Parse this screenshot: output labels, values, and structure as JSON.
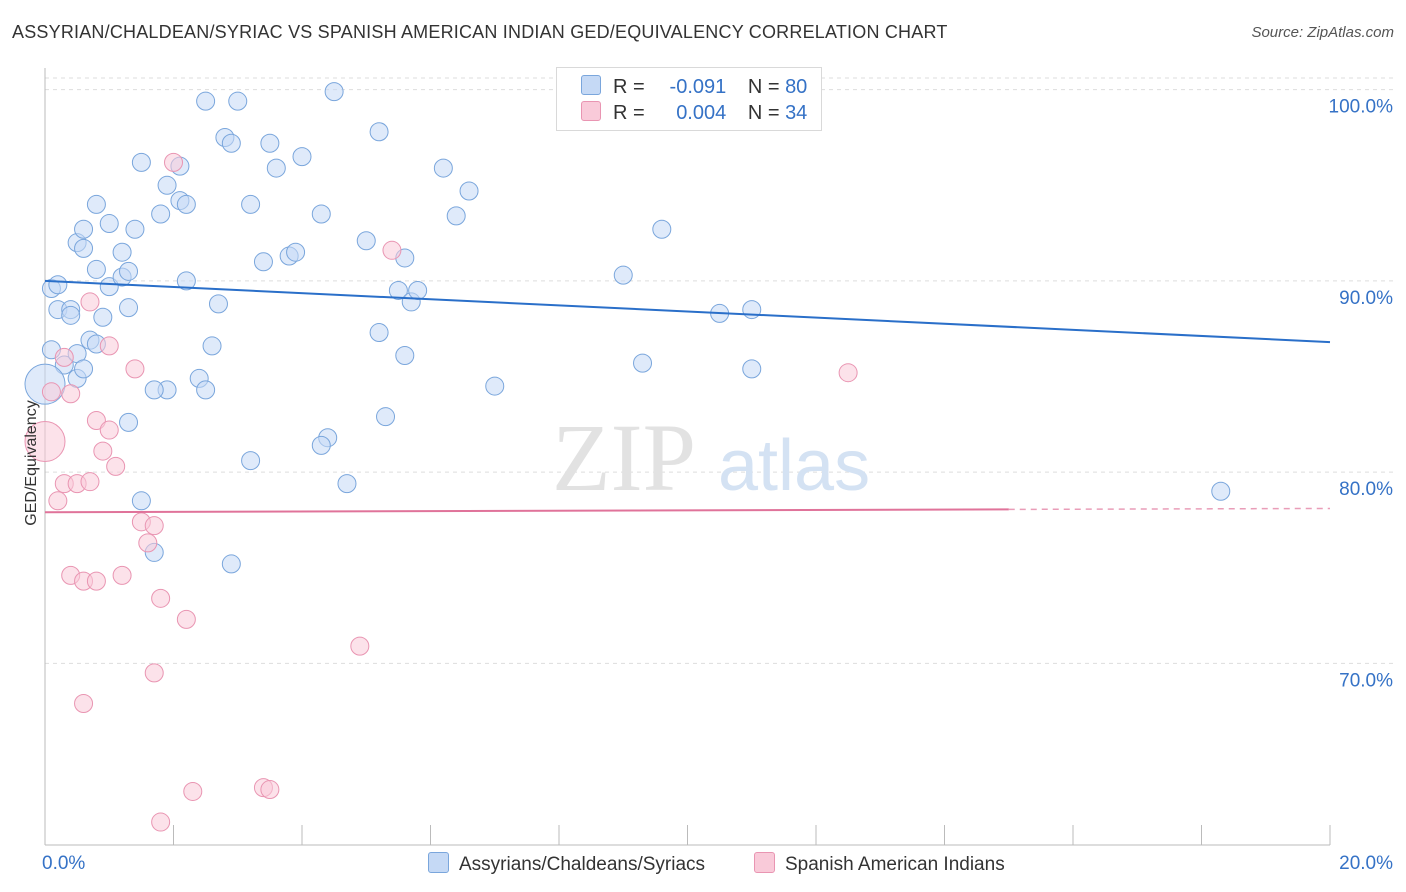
{
  "title": "ASSYRIAN/CHALDEAN/SYRIAC VS SPANISH AMERICAN INDIAN GED/EQUIVALENCY CORRELATION CHART",
  "source": "Source: ZipAtlas.com",
  "watermark": {
    "zip": "ZIP",
    "atlas": "atlas"
  },
  "legend": {
    "r_label": "R =",
    "n_label": "N =",
    "series1": {
      "r": "-0.091",
      "n": "80"
    },
    "series2": {
      "r": "0.004",
      "n": "34"
    }
  },
  "colors": {
    "blue_fill": "#c5d9f5",
    "blue_stroke": "#7aa6dc",
    "blue_line": "#2a6fc9",
    "pink_fill": "#f9cad9",
    "pink_stroke": "#e995b2",
    "pink_line": "#e0739a",
    "axis_text": "#3572c6",
    "grid": "#dddddd"
  },
  "chart_data": {
    "type": "scatter",
    "title": "ASSYRIAN/CHALDEAN/SYRIAC VS SPANISH AMERICAN INDIAN GED/EQUIVALENCY CORRELATION CHART",
    "xlabel": "",
    "ylabel": "GED/Equivalency",
    "xlim": [
      0,
      20
    ],
    "ylim": [
      60.5,
      101.5
    ],
    "x_tick_labels": [
      {
        "value": 0,
        "label": "0.0%"
      },
      {
        "value": 20,
        "label": "20.0%"
      }
    ],
    "y_tick_labels": [
      {
        "value": 100,
        "label": "100.0%"
      },
      {
        "value": 90,
        "label": "90.0%"
      },
      {
        "value": 80,
        "label": "80.0%"
      },
      {
        "value": 70,
        "label": "70.0%"
      }
    ],
    "x_minor_ticks": [
      2,
      4,
      6,
      8,
      10,
      12,
      14,
      16,
      18,
      20
    ],
    "grid": true,
    "legend_position": "top-center",
    "series": [
      {
        "name": "Assyrians/Chaldeans/Syriacs",
        "color": "blue",
        "r": -0.091,
        "n": 80,
        "trend": {
          "x0": 0,
          "y0": 90.0,
          "x1": 20,
          "y1": 86.8,
          "dashed_from": null
        },
        "points": [
          [
            0.1,
            89.6
          ],
          [
            0.2,
            89.8
          ],
          [
            0.2,
            88.5
          ],
          [
            0.4,
            88.5
          ],
          [
            0.4,
            88.2
          ],
          [
            0.1,
            86.4
          ],
          [
            0.3,
            85.6
          ],
          [
            0.0,
            84.6
          ],
          [
            0.5,
            84.9
          ],
          [
            0.5,
            86.2
          ],
          [
            0.6,
            85.4
          ],
          [
            0.7,
            86.9
          ],
          [
            0.8,
            86.7
          ],
          [
            0.9,
            88.1
          ],
          [
            0.8,
            90.6
          ],
          [
            1.0,
            89.7
          ],
          [
            1.2,
            90.2
          ],
          [
            1.3,
            90.5
          ],
          [
            0.5,
            92.0
          ],
          [
            0.6,
            91.7
          ],
          [
            0.6,
            92.7
          ],
          [
            0.8,
            94.0
          ],
          [
            1.0,
            93.0
          ],
          [
            1.2,
            91.5
          ],
          [
            1.4,
            92.7
          ],
          [
            1.5,
            96.2
          ],
          [
            1.8,
            93.5
          ],
          [
            1.9,
            95.0
          ],
          [
            2.1,
            94.2
          ],
          [
            2.2,
            94.0
          ],
          [
            2.1,
            96.0
          ],
          [
            2.2,
            90.0
          ],
          [
            2.7,
            88.8
          ],
          [
            2.6,
            86.6
          ],
          [
            2.4,
            84.9
          ],
          [
            2.5,
            84.3
          ],
          [
            1.9,
            84.3
          ],
          [
            1.7,
            84.3
          ],
          [
            1.3,
            88.6
          ],
          [
            1.3,
            82.6
          ],
          [
            1.5,
            78.5
          ],
          [
            1.7,
            75.8
          ],
          [
            2.8,
            97.5
          ],
          [
            2.9,
            97.2
          ],
          [
            2.5,
            99.4
          ],
          [
            3.0,
            99.4
          ],
          [
            3.5,
            97.2
          ],
          [
            3.2,
            94.0
          ],
          [
            3.6,
            95.9
          ],
          [
            3.4,
            91.0
          ],
          [
            3.8,
            91.3
          ],
          [
            3.9,
            91.5
          ],
          [
            4.0,
            96.5
          ],
          [
            4.3,
            93.5
          ],
          [
            4.5,
            99.9
          ],
          [
            5.0,
            92.1
          ],
          [
            5.2,
            97.8
          ],
          [
            5.5,
            89.5
          ],
          [
            5.6,
            91.2
          ],
          [
            5.7,
            88.9
          ],
          [
            5.8,
            89.5
          ],
          [
            6.2,
            95.9
          ],
          [
            6.4,
            93.4
          ],
          [
            6.6,
            94.7
          ],
          [
            5.2,
            87.3
          ],
          [
            5.6,
            86.1
          ],
          [
            5.3,
            82.9
          ],
          [
            4.4,
            81.8
          ],
          [
            4.3,
            81.4
          ],
          [
            4.7,
            79.4
          ],
          [
            3.2,
            80.6
          ],
          [
            2.9,
            75.2
          ],
          [
            7.0,
            84.5
          ],
          [
            9.0,
            90.3
          ],
          [
            9.3,
            85.7
          ],
          [
            9.6,
            92.7
          ],
          [
            10.5,
            88.3
          ],
          [
            11.0,
            88.5
          ],
          [
            11.0,
            85.4
          ],
          [
            18.3,
            79.0
          ]
        ]
      },
      {
        "name": "Spanish American Indians",
        "color": "pink",
        "r": 0.004,
        "n": 34,
        "trend": {
          "x0": 0,
          "y0": 77.9,
          "x1": 20,
          "y1": 78.1,
          "dashed_from": 15
        },
        "points": [
          [
            0.0,
            81.6
          ],
          [
            0.1,
            84.2
          ],
          [
            0.3,
            86.0
          ],
          [
            0.4,
            84.1
          ],
          [
            0.7,
            88.9
          ],
          [
            1.0,
            86.6
          ],
          [
            1.4,
            85.4
          ],
          [
            2.0,
            96.2
          ],
          [
            5.4,
            91.6
          ],
          [
            12.5,
            85.2
          ],
          [
            0.8,
            82.7
          ],
          [
            1.0,
            82.2
          ],
          [
            0.9,
            81.1
          ],
          [
            1.1,
            80.3
          ],
          [
            0.3,
            79.4
          ],
          [
            0.2,
            78.5
          ],
          [
            0.5,
            79.4
          ],
          [
            0.7,
            79.5
          ],
          [
            1.5,
            77.4
          ],
          [
            1.7,
            77.2
          ],
          [
            1.6,
            76.3
          ],
          [
            0.4,
            74.6
          ],
          [
            0.6,
            74.3
          ],
          [
            0.8,
            74.3
          ],
          [
            1.2,
            74.6
          ],
          [
            1.8,
            73.4
          ],
          [
            2.2,
            72.3
          ],
          [
            4.9,
            70.9
          ],
          [
            1.7,
            69.5
          ],
          [
            0.6,
            67.9
          ],
          [
            2.3,
            63.3
          ],
          [
            3.4,
            63.5
          ],
          [
            3.5,
            63.4
          ],
          [
            1.8,
            61.7
          ]
        ]
      }
    ]
  },
  "bottom_legend": {
    "item1": "Assyrians/Chaldeans/Syriacs",
    "item2": "Spanish American Indians"
  }
}
